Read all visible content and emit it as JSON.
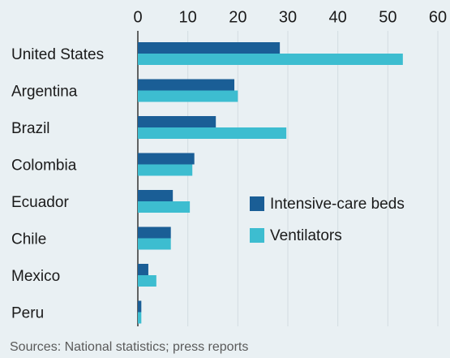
{
  "chart_data": {
    "type": "hbar",
    "categories": [
      "United States",
      "Argentina",
      "Brazil",
      "Colombia",
      "Ecuador",
      "Chile",
      "Mexico",
      "Peru"
    ],
    "series": [
      {
        "name": "Intensive-care beds",
        "color": "#1a5e96",
        "values": [
          28.4,
          19.3,
          15.6,
          11.3,
          7.0,
          6.6,
          2.1,
          0.7
        ]
      },
      {
        "name": "Ventilators",
        "color": "#3dbdd0",
        "values": [
          53.0,
          20.0,
          29.7,
          10.9,
          10.4,
          6.6,
          3.7,
          0.7
        ]
      }
    ],
    "xlim": [
      0,
      60
    ],
    "xticks": [
      0,
      10,
      20,
      30,
      40,
      50,
      60
    ],
    "grid": true,
    "source": "Sources: National statistics; press reports"
  }
}
